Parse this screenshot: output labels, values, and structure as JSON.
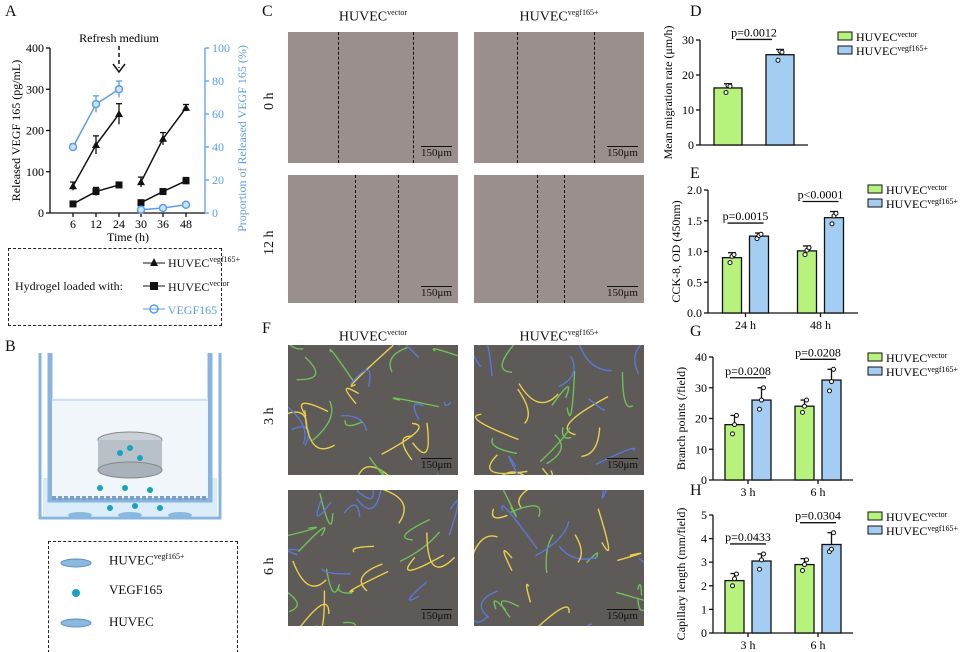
{
  "panels": {
    "A": "A",
    "B": "B",
    "C": "C",
    "D": "D",
    "E": "E",
    "F": "F",
    "G": "G",
    "H": "H"
  },
  "colors": {
    "green": "#b6f27c",
    "blue": "#a4cdf3",
    "line_blue": "#5b9ee6",
    "black": "#111111"
  },
  "legend_names": {
    "base": "HUVEC",
    "vector": "vector",
    "vegf": "vegf165",
    "plus": "+"
  },
  "panelA": {
    "annotation": "Refresh medium",
    "legend_prefix": "Hydrogel loaded with:",
    "legend_vegf_protein": "VEGF165"
  },
  "panelB": {
    "legend": [
      {
        "label": "HUVEC",
        "sup": "vegf165+"
      },
      {
        "label": "VEGF165"
      },
      {
        "label": "HUVEC"
      }
    ]
  },
  "panelC": {
    "columns": [
      {
        "base": "HUVEC",
        "sup": "vector"
      },
      {
        "base": "HUVEC",
        "sup": "vegf165+"
      }
    ],
    "rows": [
      "0 h",
      "12 h"
    ],
    "scale": "150μm"
  },
  "panelF": {
    "columns": [
      {
        "base": "HUVEC",
        "sup": "vector"
      },
      {
        "base": "HUVEC",
        "sup": "vegf165+"
      }
    ],
    "rows": [
      "3 h",
      "6 h"
    ],
    "scale": "150μm"
  },
  "chart_data": [
    {
      "panel": "A",
      "type": "line",
      "xlabel": "Time (h)",
      "ylabel": "Released VEGF 165 (pg/mL)",
      "y2label": "Proportion of Released VEGF 165 (%)",
      "x": [
        6,
        12,
        24,
        30,
        36,
        48
      ],
      "ylim": [
        0,
        400
      ],
      "yticks": [
        0,
        100,
        200,
        300,
        400
      ],
      "y2lim": [
        0,
        100
      ],
      "y2ticks": [
        0,
        20,
        40,
        60,
        80,
        100
      ],
      "series": [
        {
          "name": "HUVEC vegf165+",
          "marker": "triangle",
          "axis": "left",
          "values": [
            65,
            165,
            240,
            75,
            180,
            255
          ],
          "err": [
            10,
            22,
            25,
            12,
            15,
            8
          ]
        },
        {
          "name": "HUVEC vector",
          "marker": "square",
          "axis": "left",
          "values": [
            22,
            52,
            68,
            25,
            52,
            78
          ],
          "err": [
            3,
            10,
            4,
            3,
            4,
            8
          ]
        },
        {
          "name": "VEGF165",
          "marker": "circle",
          "axis": "right",
          "values": [
            40,
            66,
            75,
            2,
            3,
            5
          ],
          "err": [
            2,
            5,
            5,
            1,
            1,
            1
          ]
        }
      ]
    },
    {
      "panel": "D",
      "type": "bar",
      "ylabel": "Mean migration rate (μm/h)",
      "ylim": [
        0,
        30
      ],
      "yticks": [
        0,
        10,
        20,
        30
      ],
      "categories": [
        ""
      ],
      "series": [
        {
          "name": "HUVEC vector",
          "values": [
            16.3
          ],
          "sd": [
            1.2
          ],
          "points": [
            [
              15,
              17,
              16.8
            ]
          ]
        },
        {
          "name": "HUVEC vegf165+",
          "values": [
            25.8
          ],
          "sd": [
            1.5
          ],
          "points": [
            [
              24.2,
              26.8,
              26.5
            ]
          ]
        }
      ],
      "pvalues": [
        {
          "group": 0,
          "text": "p=0.0012"
        }
      ]
    },
    {
      "panel": "E",
      "type": "bar",
      "ylabel": "CCK-8, OD (450nm)",
      "ylim": [
        0,
        2
      ],
      "yticks": [
        "0.0",
        "0.5",
        "1.0",
        "1.5",
        "2.0"
      ],
      "categories": [
        "24 h",
        "48 h"
      ],
      "series": [
        {
          "name": "HUVEC vector",
          "values": [
            0.9,
            1.01
          ],
          "sd": [
            0.08,
            0.08
          ],
          "points": [
            [
              0.82,
              0.92,
              0.95
            ],
            [
              0.95,
              1.02,
              1.06
            ]
          ]
        },
        {
          "name": "HUVEC vegf165+",
          "values": [
            1.25,
            1.55
          ],
          "sd": [
            0.05,
            0.1
          ],
          "points": [
            [
              1.21,
              1.26,
              1.28
            ],
            [
              1.45,
              1.58,
              1.62
            ]
          ]
        }
      ],
      "pvalues": [
        {
          "group": 0,
          "text": "p=0.0015"
        },
        {
          "group": 1,
          "text": "p<0.0001"
        }
      ]
    },
    {
      "panel": "G",
      "type": "bar",
      "ylabel": "Branch points (/field)",
      "ylim": [
        0,
        40
      ],
      "yticks": [
        0,
        10,
        20,
        30,
        40
      ],
      "categories": [
        "3 h",
        "6 h"
      ],
      "series": [
        {
          "name": "HUVEC vector",
          "values": [
            18,
            24
          ],
          "sd": [
            3,
            2
          ],
          "points": [
            [
              15,
              18,
              21
            ],
            [
              22,
              24,
              26
            ]
          ]
        },
        {
          "name": "HUVEC vegf165+",
          "values": [
            26,
            32.5
          ],
          "sd": [
            4,
            3.5
          ],
          "points": [
            [
              23,
              26,
              30
            ],
            [
              29,
              32,
              36
            ]
          ]
        }
      ],
      "pvalues": [
        {
          "group": 0,
          "text": "p=0.0208"
        },
        {
          "group": 1,
          "text": "p=0.0208"
        }
      ]
    },
    {
      "panel": "H",
      "type": "bar",
      "ylabel": "Capillary length (mm/field)",
      "ylim": [
        0,
        5
      ],
      "yticks": [
        0,
        1,
        2,
        3,
        4,
        5
      ],
      "categories": [
        "3 h",
        "6 h"
      ],
      "series": [
        {
          "name": "HUVEC vector",
          "values": [
            2.22,
            2.9
          ],
          "sd": [
            0.3,
            0.25
          ],
          "points": [
            [
              2.0,
              2.3,
              2.5
            ],
            [
              2.65,
              2.9,
              3.1
            ]
          ]
        },
        {
          "name": "HUVEC vegf165+",
          "values": [
            3.05,
            3.75
          ],
          "sd": [
            0.3,
            0.5
          ],
          "points": [
            [
              2.7,
              3.1,
              3.35
            ],
            [
              3.45,
              3.55,
              4.25
            ]
          ]
        }
      ],
      "pvalues": [
        {
          "group": 0,
          "text": "p=0.0433"
        },
        {
          "group": 1,
          "text": "p=0.0304"
        }
      ]
    }
  ]
}
